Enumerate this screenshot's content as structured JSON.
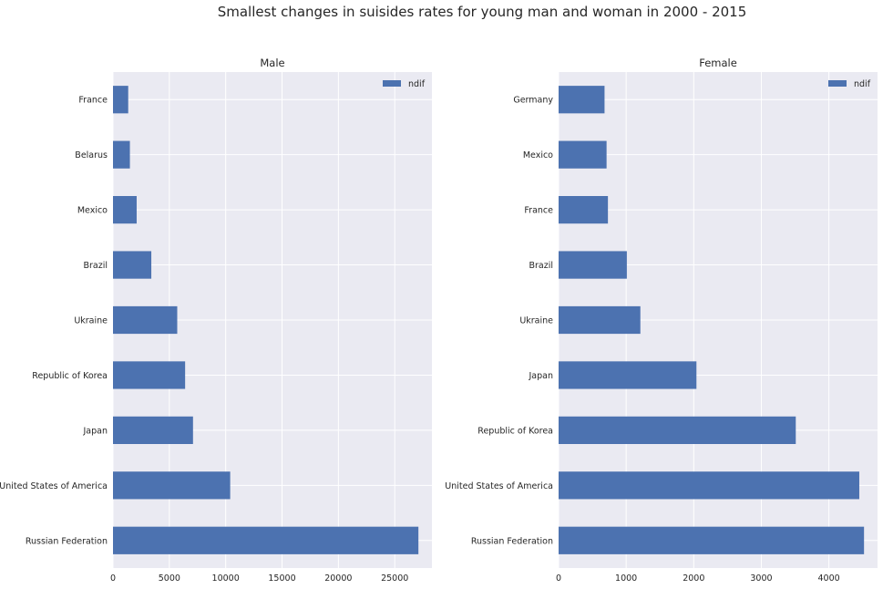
{
  "figure": {
    "suptitle": "Smallest changes in suisides rates for young man and woman in 2000 - 2015"
  },
  "colors": {
    "bar": "#4c72b0",
    "axes_bg": "#eaeaf2",
    "grid": "#ffffff",
    "text": "#262626"
  },
  "chart_data": [
    {
      "type": "bar",
      "orientation": "horizontal",
      "title": "Male",
      "legend": {
        "entries": [
          "ndif"
        ],
        "placement": "top-right"
      },
      "grid": true,
      "xlim": [
        0,
        28300
      ],
      "xticks": [
        0,
        5000,
        10000,
        15000,
        20000,
        25000
      ],
      "categories": [
        "Russian Federation",
        "United States of America",
        "Japan",
        "Republic of Korea",
        "Ukraine",
        "Brazil",
        "Mexico",
        "Belarus",
        "France"
      ],
      "series": [
        {
          "name": "ndif",
          "values": [
            27100,
            10400,
            7100,
            6400,
            5700,
            3400,
            2100,
            1500,
            1350
          ]
        }
      ]
    },
    {
      "type": "bar",
      "orientation": "horizontal",
      "title": "Female",
      "legend": {
        "entries": [
          "ndif"
        ],
        "placement": "top-right"
      },
      "grid": true,
      "xlim": [
        0,
        4720
      ],
      "xticks": [
        0,
        1000,
        2000,
        3000,
        4000
      ],
      "categories": [
        "Russian Federation",
        "United States of America",
        "Republic of Korea",
        "Japan",
        "Ukraine",
        "Brazil",
        "France",
        "Mexico",
        "Germany"
      ],
      "series": [
        {
          "name": "ndif",
          "values": [
            4520,
            4450,
            3510,
            2040,
            1210,
            1010,
            730,
            710,
            680
          ]
        }
      ]
    }
  ]
}
